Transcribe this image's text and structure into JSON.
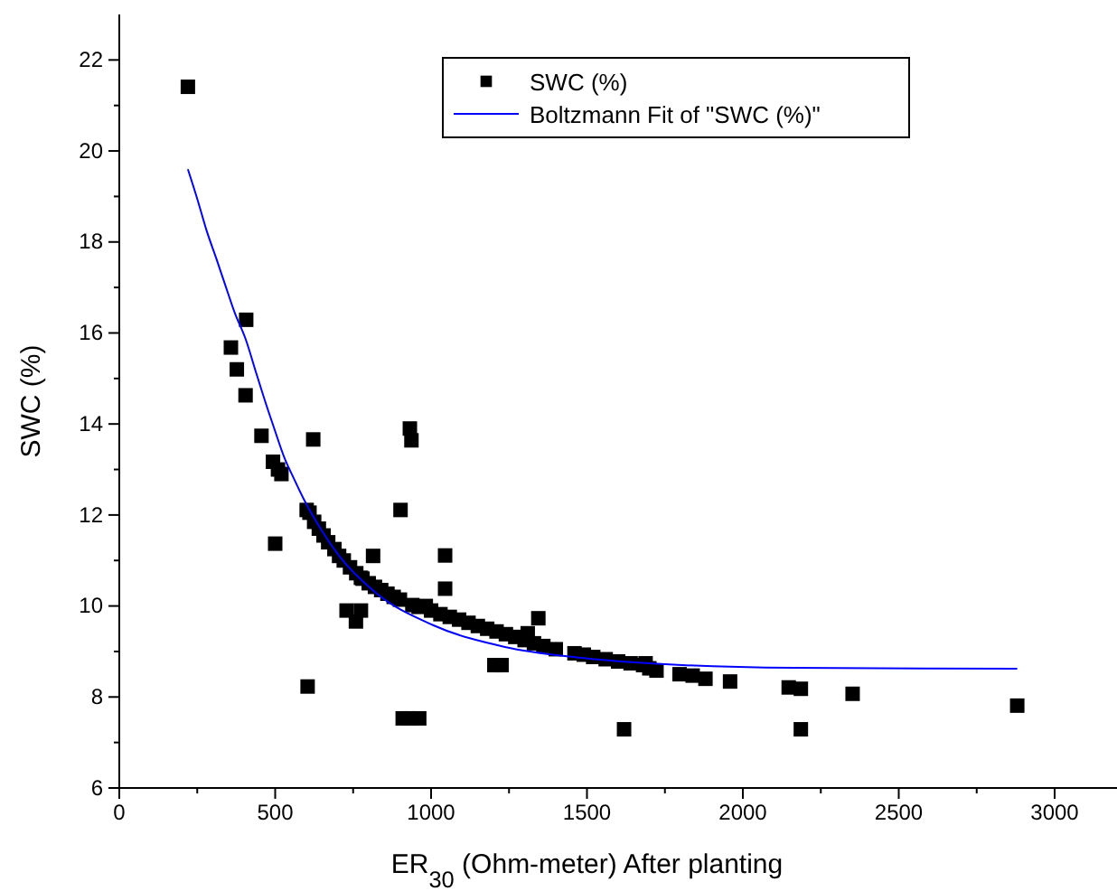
{
  "chart_data": {
    "type": "scatter",
    "xlabel": "ER$_{30}$ (Ohm-meter) After planting",
    "ylabel": "SWC (%)",
    "xlim": [
      0,
      3200
    ],
    "ylim": [
      6,
      23
    ],
    "xticks": [
      0,
      {
        "value": 250,
        "label": null
      },
      500,
      {
        "value": 750,
        "label": null
      },
      1000,
      {
        "value": 1250,
        "label": null
      },
      1500,
      {
        "value": 1750,
        "label": null
      },
      2000,
      {
        "value": 2250,
        "label": null
      },
      2500,
      {
        "value": 2750,
        "label": null
      },
      3000
    ],
    "yticks": [
      6,
      {
        "value": 7,
        "label": null
      },
      8,
      {
        "value": 9,
        "label": null
      },
      10,
      {
        "value": 11,
        "label": null
      },
      12,
      {
        "value": 13,
        "label": null
      },
      14,
      {
        "value": 15,
        "label": null
      },
      16,
      {
        "value": 17,
        "label": null
      },
      18,
      {
        "value": 19,
        "label": null
      },
      20,
      {
        "value": 21,
        "label": null
      },
      22
    ],
    "grid": false,
    "legend": "top",
    "marker": "square",
    "series": [
      {
        "name": "SWC (%)",
        "color": "#000000",
        "x": [
          220,
          358,
          377,
          407,
          405,
          456,
          493,
          509,
          520,
          500,
          604,
          622,
          601,
          610,
          625,
          640,
          655,
          670,
          690,
          705,
          720,
          740,
          760,
          780,
          800,
          820,
          840,
          860,
          880,
          900,
          940,
          960,
          1000,
          1030,
          1060,
          1090,
          1120,
          1150,
          1180,
          1210,
          1240,
          1270,
          1300,
          1330,
          1360,
          1400,
          1460,
          1490,
          1520,
          1560,
          1600,
          1640,
          1680,
          729,
          775,
          759,
          814,
          775,
          902,
          932,
          937,
          909,
          930,
          962,
          1045,
          1045,
          983,
          1203,
          1226,
          1310,
          1344,
          1619,
          2186,
          2880,
          2352,
          2147,
          2186,
          1959,
          1880,
          1839,
          1797,
          1723,
          1700,
          1688
        ],
        "values": [
          21.41,
          15.68,
          15.2,
          16.29,
          14.63,
          13.74,
          13.17,
          13.0,
          12.9,
          11.37,
          8.23,
          13.66,
          12.11,
          12.05,
          11.85,
          11.7,
          11.55,
          11.4,
          11.25,
          11.1,
          11.0,
          10.85,
          10.72,
          10.6,
          10.5,
          10.42,
          10.35,
          10.27,
          10.2,
          10.14,
          10.02,
          9.98,
          9.9,
          9.82,
          9.76,
          9.7,
          9.63,
          9.56,
          9.5,
          9.44,
          9.38,
          9.32,
          9.25,
          9.18,
          9.12,
          9.05,
          8.96,
          8.93,
          8.88,
          8.83,
          8.78,
          8.74,
          8.7,
          9.9,
          9.9,
          9.66,
          11.1,
          10.62,
          12.11,
          13.9,
          13.64,
          7.53,
          7.53,
          7.53,
          11.11,
          10.38,
          10.0,
          8.7,
          8.7,
          9.4,
          9.73,
          7.29,
          7.29,
          7.81,
          8.07,
          8.21,
          8.18,
          8.34,
          8.4,
          8.47,
          8.5,
          8.58,
          8.63,
          8.74
        ]
      },
      {
        "name": "Boltzmann Fit of \"SWC (%)\"",
        "type": "line",
        "color": "#0000ff",
        "marker": "none",
        "line_style": "solid",
        "x": [
          220,
          250,
          280,
          312,
          340,
          370,
          405,
          440,
          470,
          497,
          530,
          560,
          590,
          650,
          705,
          821,
          1006,
          1237,
          1468,
          1700,
          2162,
          2880
        ],
        "values": [
          19.6,
          18.95,
          18.25,
          17.62,
          17.05,
          16.45,
          15.87,
          15.1,
          14.45,
          13.9,
          13.25,
          12.8,
          12.37,
          11.65,
          11.1,
          10.3,
          9.58,
          9.1,
          8.87,
          8.74,
          8.64,
          8.62
        ]
      }
    ]
  }
}
